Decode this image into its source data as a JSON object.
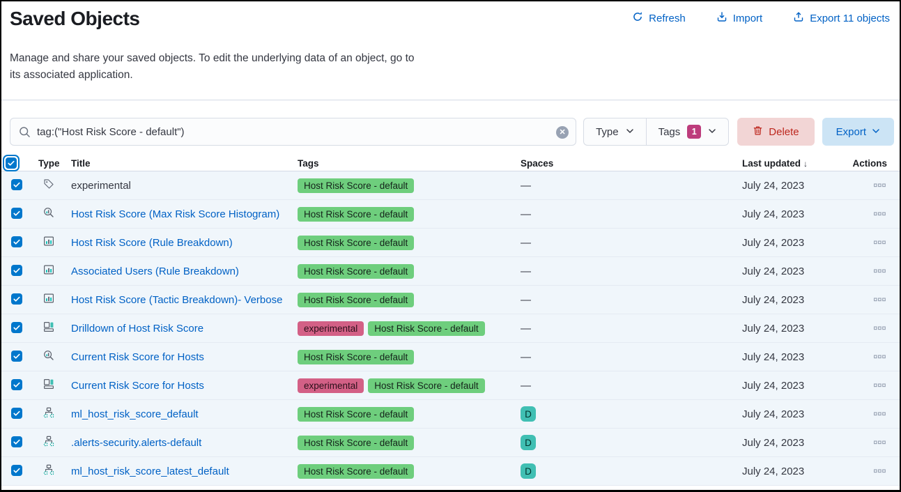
{
  "header": {
    "title": "Saved Objects",
    "description_line1": "Manage and share your saved objects. To edit the underlying data of an object, go to",
    "description_line2": "its associated application.",
    "actions": [
      {
        "id": "refresh",
        "label": "Refresh"
      },
      {
        "id": "import",
        "label": "Import"
      },
      {
        "id": "export_all",
        "label": "Export 11 objects"
      }
    ]
  },
  "toolbar": {
    "search": {
      "value": "tag:(\"Host Risk Score - default\")"
    },
    "filters": [
      {
        "label": "Type"
      },
      {
        "label": "Tags",
        "count": "1"
      }
    ],
    "delete_label": "Delete",
    "export_label": "Export"
  },
  "table": {
    "headers": {
      "type": "Type",
      "title": "Title",
      "tags": "Tags",
      "spaces": "Spaces",
      "last_updated": "Last updated",
      "actions": "Actions"
    },
    "sort_indicator": "↓",
    "empty_spaces_placeholder": "—",
    "rows": [
      {
        "icon": "tag",
        "link": false,
        "title": "experimental",
        "tags": [
          {
            "label": "Host Risk Score - default",
            "color": "green"
          }
        ],
        "space": null,
        "updated": "July 24, 2023"
      },
      {
        "icon": "lens",
        "link": true,
        "title": "Host Risk Score (Max Risk Score Histogram)",
        "tags": [
          {
            "label": "Host Risk Score - default",
            "color": "green"
          }
        ],
        "space": null,
        "updated": "July 24, 2023"
      },
      {
        "icon": "visualization",
        "link": true,
        "title": "Host Risk Score (Rule Breakdown)",
        "tags": [
          {
            "label": "Host Risk Score - default",
            "color": "green"
          }
        ],
        "space": null,
        "updated": "July 24, 2023"
      },
      {
        "icon": "visualization",
        "link": true,
        "title": "Associated Users (Rule Breakdown)",
        "tags": [
          {
            "label": "Host Risk Score - default",
            "color": "green"
          }
        ],
        "space": null,
        "updated": "July 24, 2023"
      },
      {
        "icon": "visualization",
        "link": true,
        "title": "Host Risk Score (Tactic Breakdown)- Verbose",
        "tags": [
          {
            "label": "Host Risk Score - default",
            "color": "green"
          }
        ],
        "space": null,
        "updated": "July 24, 2023"
      },
      {
        "icon": "dashboard",
        "link": true,
        "title": "Drilldown of Host Risk Score",
        "tags": [
          {
            "label": "experimental",
            "color": "pink"
          },
          {
            "label": "Host Risk Score - default",
            "color": "green"
          }
        ],
        "space": null,
        "updated": "July 24, 2023"
      },
      {
        "icon": "lens",
        "link": true,
        "title": "Current Risk Score for Hosts",
        "tags": [
          {
            "label": "Host Risk Score - default",
            "color": "green"
          }
        ],
        "space": null,
        "updated": "July 24, 2023"
      },
      {
        "icon": "dashboard",
        "link": true,
        "title": "Current Risk Score for Hosts",
        "tags": [
          {
            "label": "experimental",
            "color": "pink"
          },
          {
            "label": "Host Risk Score - default",
            "color": "green"
          }
        ],
        "space": null,
        "updated": "July 24, 2023"
      },
      {
        "icon": "index-pattern",
        "link": true,
        "title": "ml_host_risk_score_default",
        "tags": [
          {
            "label": "Host Risk Score - default",
            "color": "green"
          }
        ],
        "space": "D",
        "updated": "July 24, 2023"
      },
      {
        "icon": "index-pattern",
        "link": true,
        "title": ".alerts-security.alerts-default",
        "tags": [
          {
            "label": "Host Risk Score - default",
            "color": "green"
          }
        ],
        "space": "D",
        "updated": "July 24, 2023"
      },
      {
        "icon": "index-pattern",
        "link": true,
        "title": "ml_host_risk_score_latest_default",
        "tags": [
          {
            "label": "Host Risk Score - default",
            "color": "green"
          }
        ],
        "space": "D",
        "updated": "July 24, 2023"
      }
    ]
  },
  "colors": {
    "link_blue": "#0061c5",
    "primary_blue": "#0077cc",
    "tag_green": "#6ece7d",
    "tag_pink": "#d36086",
    "space_teal": "#40bfb3",
    "danger_red": "#bd271e",
    "filter_badge_pink": "#bd3c7c",
    "row_bg": "#f0f6fb"
  }
}
